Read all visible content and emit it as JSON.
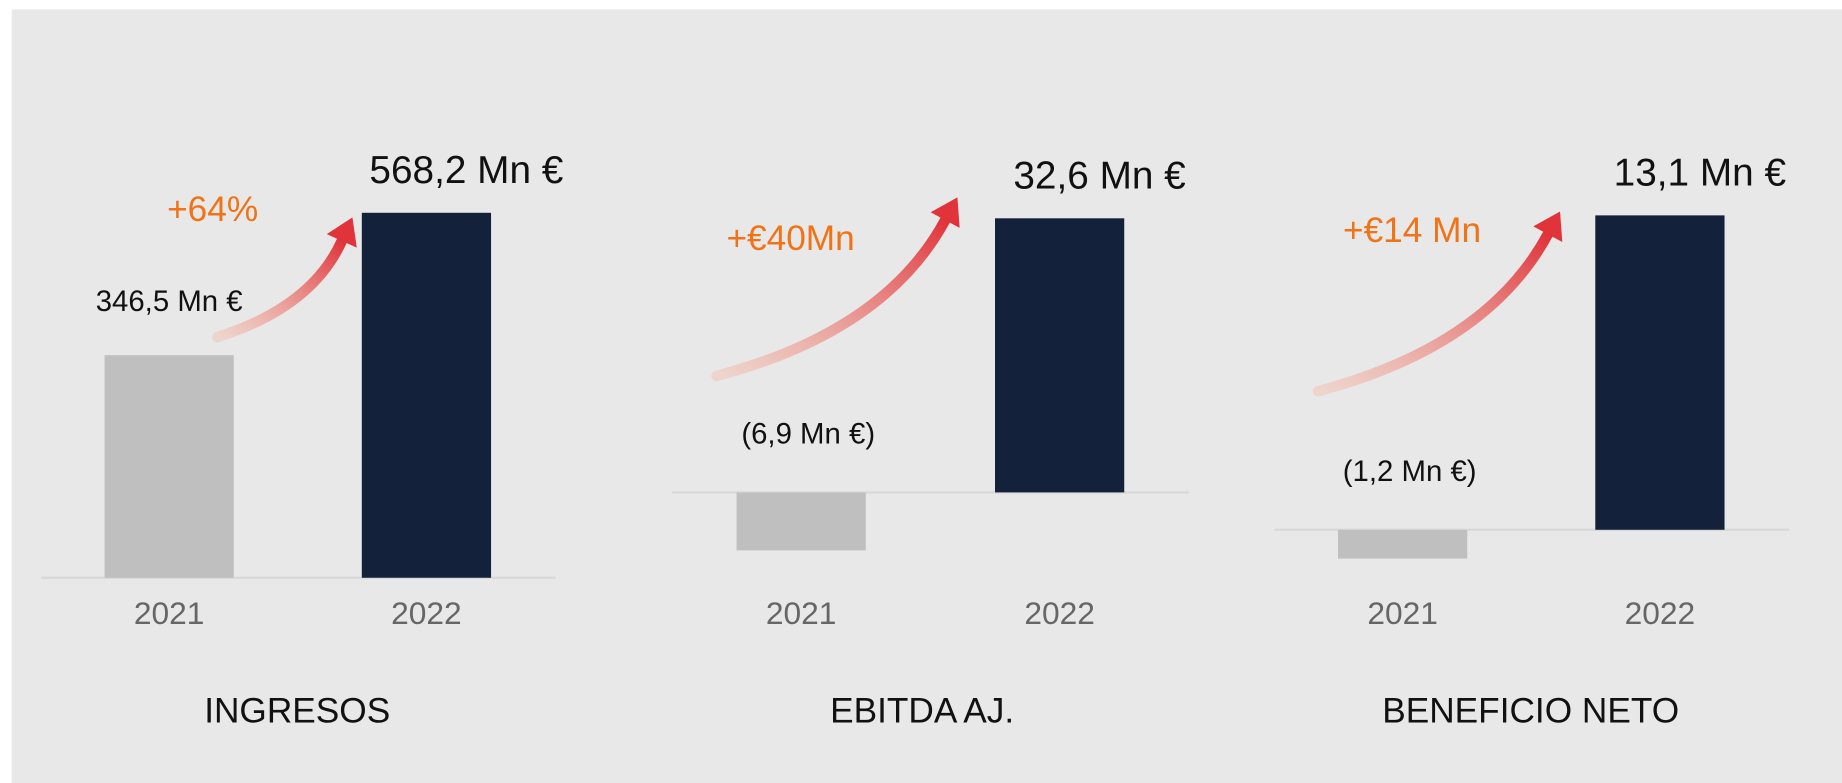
{
  "chart_data": [
    {
      "type": "bar",
      "title": "INGRESOS",
      "categories": [
        "2021",
        "2022"
      ],
      "values": [
        346.5,
        568.2
      ],
      "value_labels": [
        "346,5 Mn €",
        "568,2 Mn €"
      ],
      "colors": [
        "#bfbfbf",
        "#13213a"
      ],
      "annotation": "+64%",
      "ylim": [
        -15,
        680
      ]
    },
    {
      "type": "bar",
      "title": "EBITDA AJ.",
      "categories": [
        "2021",
        "2022"
      ],
      "values": [
        -6.9,
        32.6
      ],
      "value_labels": [
        "(6,9 Mn €)",
        "32,6 Mn €"
      ],
      "colors": [
        "#bfbfbf",
        "#13213a"
      ],
      "annotation": "+€40Mn",
      "ylim": [
        -11.3,
        41.8
      ]
    },
    {
      "type": "bar",
      "title": "BENEFICIO NETO",
      "categories": [
        "2021",
        "2022"
      ],
      "values": [
        -1.2,
        13.1
      ],
      "value_labels": [
        "(1,2 Mn €)",
        "13,1 Mn €"
      ],
      "colors": [
        "#bfbfbf",
        "#13213a"
      ],
      "annotation": "+€14 Mn",
      "ylim": [
        -2.4,
        16.2
      ]
    }
  ]
}
